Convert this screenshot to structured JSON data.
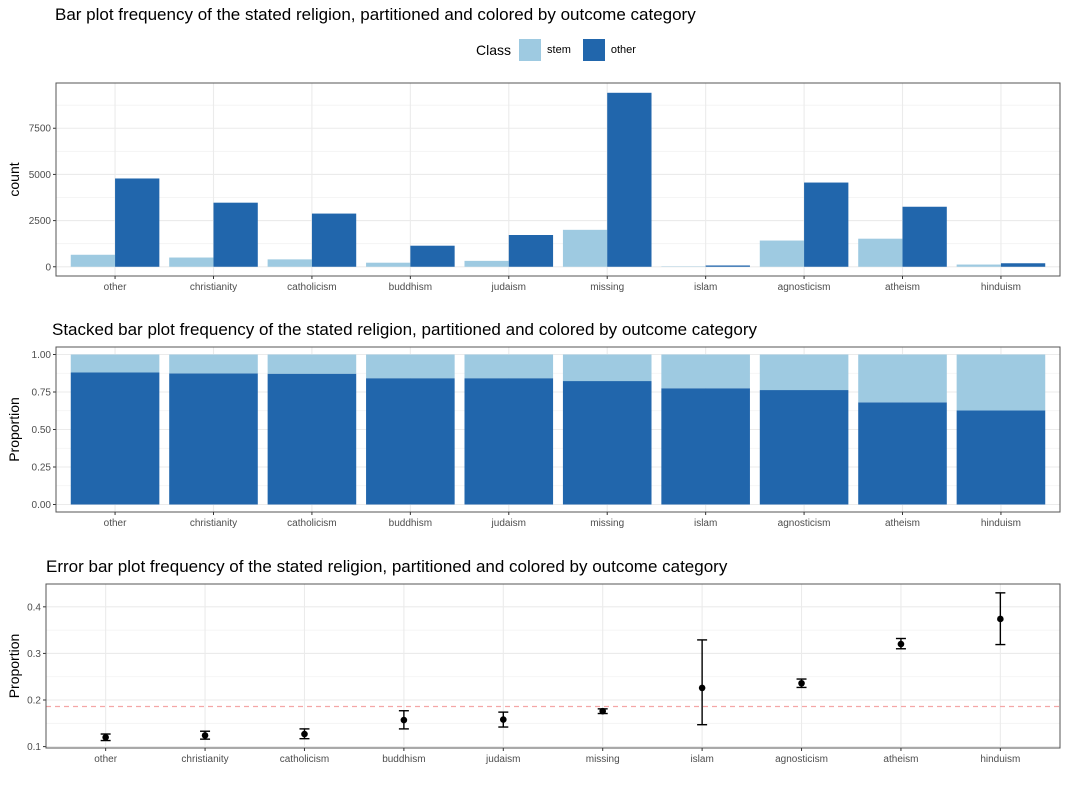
{
  "colors": {
    "stem": "#9ecae1",
    "other": "#2166ac",
    "refline": "#f4a6a6",
    "grid": "#ebebeb",
    "panel_border": "#555555"
  },
  "legend": {
    "title": "Class",
    "items": [
      "stem",
      "other"
    ]
  },
  "chart_data": [
    {
      "type": "bar",
      "title": "Bar plot frequency of the stated religion, partitioned and colored by outcome category",
      "xlabel": "",
      "ylabel": "count",
      "categories": [
        "other",
        "christianity",
        "catholicism",
        "buddhism",
        "judaism",
        "missing",
        "islam",
        "agnosticism",
        "atheism",
        "hinduism"
      ],
      "series": [
        {
          "name": "stem",
          "values": [
            650,
            500,
            400,
            220,
            320,
            2000,
            20,
            1420,
            1520,
            120
          ]
        },
        {
          "name": "other",
          "values": [
            4780,
            3470,
            2880,
            1140,
            1720,
            9420,
            70,
            4560,
            3250,
            190
          ]
        }
      ],
      "yticks": [
        0,
        2500,
        5000,
        7500
      ],
      "ytick_labels": [
        "0",
        "2500",
        "5000",
        "7500"
      ],
      "ylim": [
        -500,
        9950
      ],
      "grid": true
    },
    {
      "type": "bar",
      "stacked": true,
      "title": "Stacked bar plot frequency of the stated religion, partitioned and colored by outcome category",
      "xlabel": "",
      "ylabel": "Proportion",
      "categories": [
        "other",
        "christianity",
        "catholicism",
        "buddhism",
        "judaism",
        "missing",
        "islam",
        "agnosticism",
        "atheism",
        "hinduism"
      ],
      "series": [
        {
          "name": "other",
          "values": [
            0.88,
            0.874,
            0.872,
            0.842,
            0.842,
            0.823,
            0.775,
            0.763,
            0.681,
            0.627
          ]
        },
        {
          "name": "stem",
          "values": [
            0.12,
            0.126,
            0.128,
            0.158,
            0.158,
            0.177,
            0.225,
            0.237,
            0.319,
            0.373
          ]
        }
      ],
      "yticks": [
        0,
        0.25,
        0.5,
        0.75,
        1
      ],
      "ytick_labels": [
        "0.00",
        "0.25",
        "0.50",
        "0.75",
        "1.00"
      ],
      "ylim": [
        -0.05,
        1.05
      ],
      "grid": true
    },
    {
      "type": "scatter",
      "errorbars": true,
      "title": "Error bar plot frequency of the stated religion, partitioned and colored by outcome category",
      "xlabel": "",
      "ylabel": "Proportion",
      "categories": [
        "other",
        "christianity",
        "catholicism",
        "buddhism",
        "judaism",
        "missing",
        "islam",
        "agnosticism",
        "atheism",
        "hinduism"
      ],
      "values": [
        0.12,
        0.124,
        0.127,
        0.157,
        0.158,
        0.176,
        0.226,
        0.236,
        0.32,
        0.374
      ],
      "lower": [
        0.113,
        0.116,
        0.117,
        0.138,
        0.142,
        0.171,
        0.147,
        0.227,
        0.31,
        0.319
      ],
      "upper": [
        0.127,
        0.133,
        0.138,
        0.177,
        0.174,
        0.181,
        0.329,
        0.245,
        0.332,
        0.43
      ],
      "reference_line": 0.186,
      "yticks": [
        0.1,
        0.2,
        0.3,
        0.4
      ],
      "ytick_labels": [
        "0.1",
        "0.2",
        "0.3",
        "0.4"
      ],
      "ylim": [
        0.097,
        0.449
      ],
      "grid": true
    }
  ]
}
